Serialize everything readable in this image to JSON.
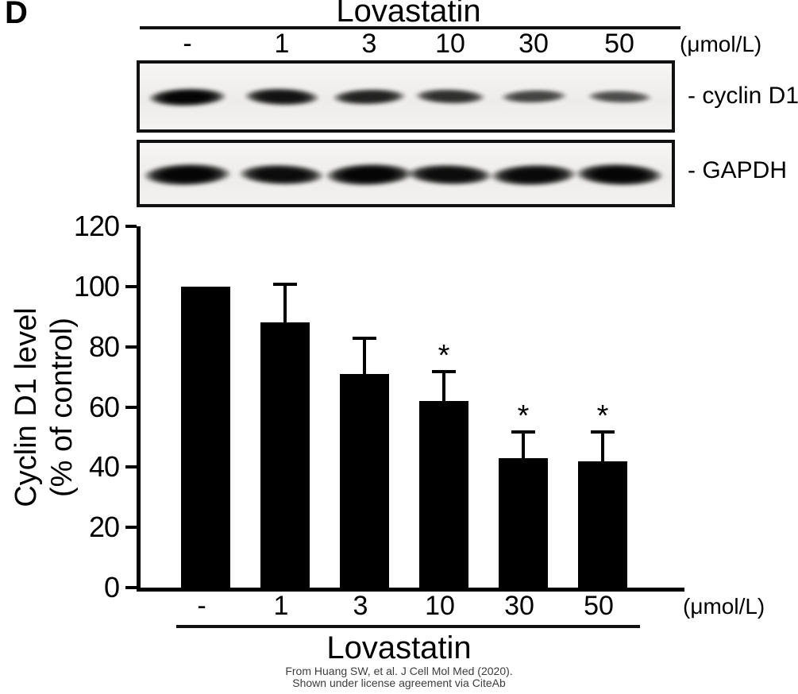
{
  "panel_label": "D",
  "treatment": {
    "top_title": "Lovastatin",
    "bottom_title": "Lovastatin",
    "unit_label": "(μmol/L)",
    "doses": [
      "-",
      "1",
      "3",
      "10",
      "30",
      "50"
    ]
  },
  "blots": [
    {
      "name": "cyclin D1",
      "label": "- cyclin D1",
      "band_intensities": [
        1.0,
        0.9,
        0.82,
        0.72,
        0.58,
        0.52
      ]
    },
    {
      "name": "GAPDH",
      "label": "- GAPDH",
      "band_intensities": [
        1.0,
        0.93,
        1.0,
        0.93,
        0.95,
        1.0
      ]
    }
  ],
  "chart_data": {
    "type": "bar",
    "categories": [
      "-",
      "1",
      "3",
      "10",
      "30",
      "50"
    ],
    "values": [
      100,
      88,
      71,
      62,
      43,
      42
    ],
    "errors_plus": [
      0,
      13,
      12,
      10,
      9,
      10
    ],
    "significance": [
      "",
      "",
      "",
      "*",
      "*",
      "*"
    ],
    "title": "",
    "xlabel": "Lovastatin (μmol/L)",
    "ylabel": "Cyclin D1 level (% of control)",
    "ylabel_line1": "Cyclin D1 level",
    "ylabel_line2": "(% of control)",
    "ylim": [
      0,
      120
    ],
    "yticks": [
      0,
      20,
      40,
      60,
      80,
      100,
      120
    ],
    "bar_color": "#000000",
    "grid": false,
    "legend": null
  },
  "attribution": {
    "line1": "From Huang SW, et al. J Cell Mol Med (2020).",
    "line2": "Shown under license agreement via CiteAb",
    "color": "#3c3c3c"
  }
}
